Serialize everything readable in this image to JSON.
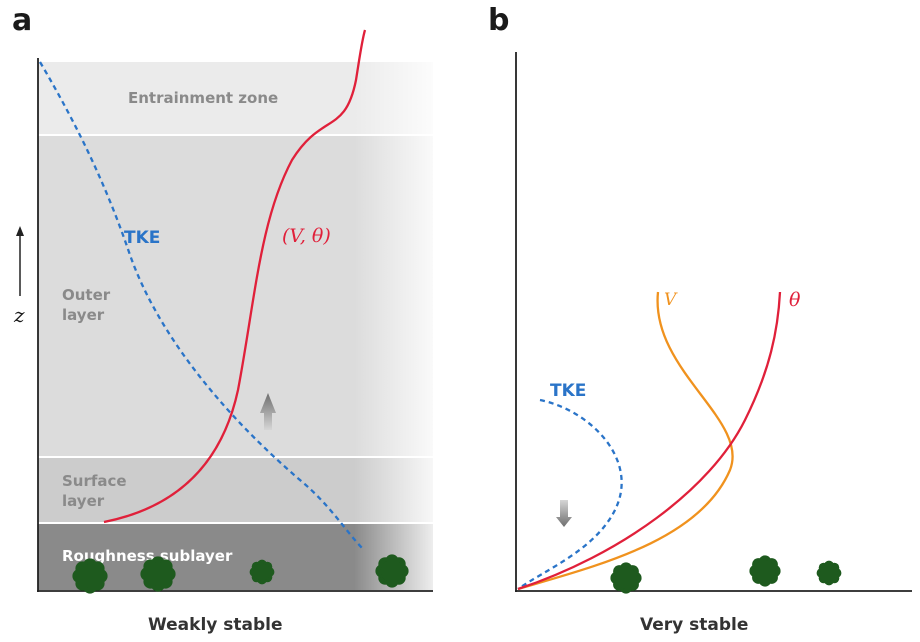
{
  "panel_a": {
    "letter": "a",
    "caption": "Weakly stable",
    "axis_label": "z",
    "layers": {
      "entrainment": "Entrainment zone",
      "outer_line1": "Outer",
      "outer_line2": "layer",
      "surface_line1": "Surface",
      "surface_line2": "layer",
      "roughness": "Roughness sublayer"
    },
    "tke_label": "TKE",
    "profile_label": "(V, θ)"
  },
  "panel_b": {
    "letter": "b",
    "caption": "Very stable",
    "tke_label": "TKE",
    "v_label": "V",
    "theta_label": "θ"
  },
  "colors": {
    "tke": "#2a74c8",
    "theta": "#e0203a",
    "velocity": "#f0921e",
    "vegetation": "#1e5a1e",
    "arrow": "#8a8a8a"
  }
}
